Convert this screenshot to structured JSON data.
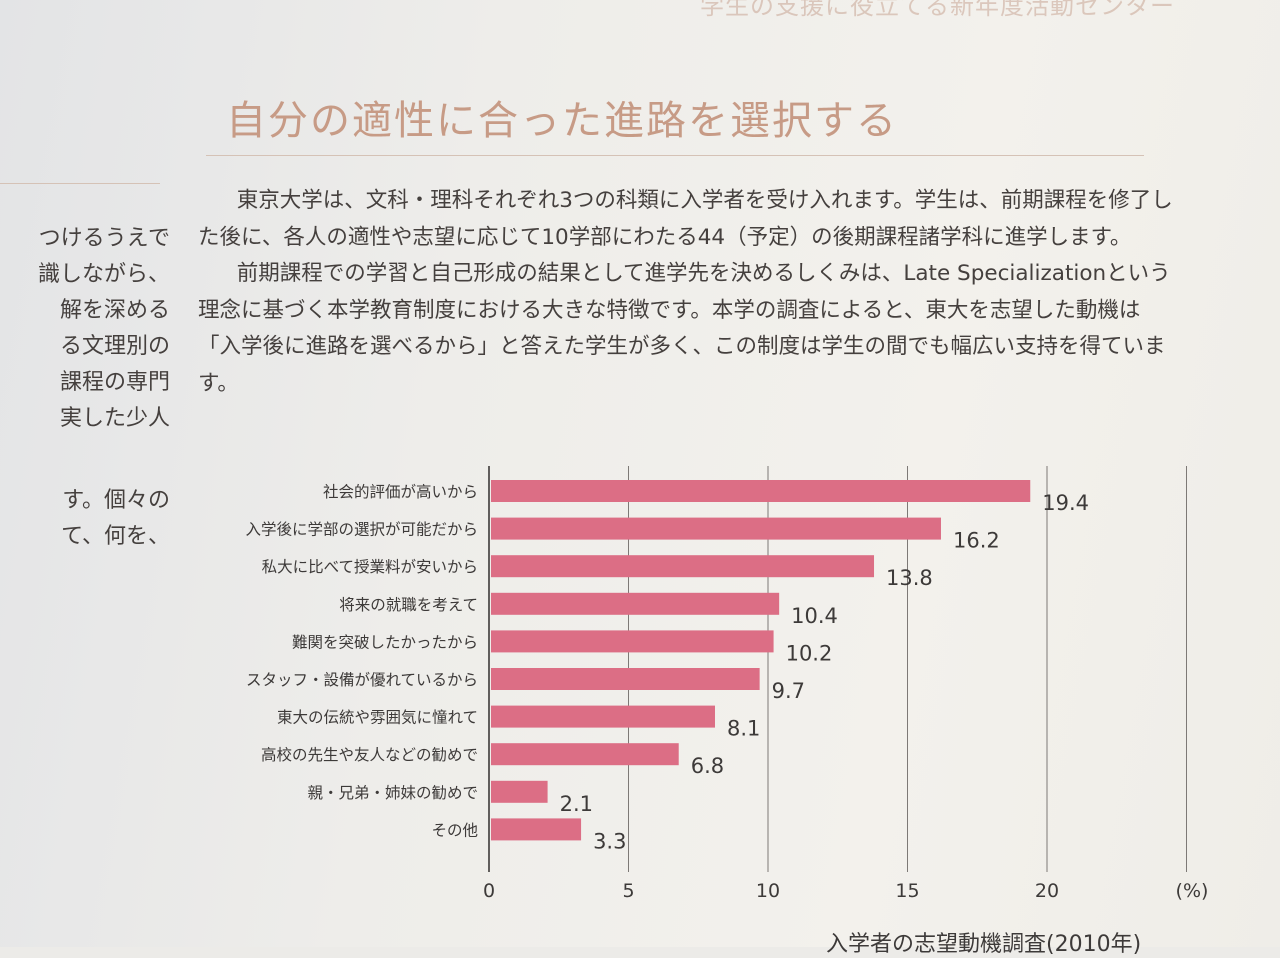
{
  "header_faint": "学生の支援に役立てる新年度活動センター",
  "section_title": "自分の適性に合った進路を選択する",
  "left_column": [
    "つけるうえで",
    "識しながら、",
    "解を深める",
    "る文理別の",
    "課程の専門",
    "実した少人",
    "す。個々の",
    "て、何を、"
  ],
  "body": {
    "p1": "東京大学は、文科・理科それぞれ3つの科類に入学者を受け入れます。学生は、前期課程を修了した後に、各人の適性や志望に応じて10学部にわたる44（予定）の後期課程諸学科に進学します。",
    "p2": "前期課程での学習と自己形成の結果として進学先を決めるしくみは、Late Specializationという理念に基づく本学教育制度における大きな特徴です。本学の調査によると、東大を志望した動機は「入学後に進路を選べるから」と答えた学生が多く、この制度は学生の間でも幅広い支持を得ています。"
  },
  "chart_data": {
    "type": "bar",
    "orientation": "horizontal",
    "categories": [
      "社会的評価が高いから",
      "入学後に学部の選択が可能だから",
      "私大に比べて授業料が安いから",
      "将来の就職を考えて",
      "難関を突破したかったから",
      "スタッフ・設備が優れているから",
      "東大の伝統や雰囲気に憧れて",
      "高校の先生や友人などの勧めで",
      "親・兄弟・姉妹の勧めで",
      "その他"
    ],
    "values": [
      19.4,
      16.2,
      13.8,
      10.4,
      10.2,
      9.7,
      8.1,
      6.8,
      2.1,
      3.3
    ],
    "value_labels": [
      "19.4",
      "16.2",
      "13.8",
      "10.4",
      "10.2",
      "9.7",
      "8.1",
      "6.8",
      "2.1",
      "3.3"
    ],
    "x_ticks": [
      "0",
      "5",
      "10",
      "15",
      "20"
    ],
    "x_unit": "(%)",
    "xlim": [
      0,
      25
    ],
    "grid": true,
    "bar_color": "#dc6e85",
    "caption": "入学者の志望動機調査(2010年)"
  }
}
